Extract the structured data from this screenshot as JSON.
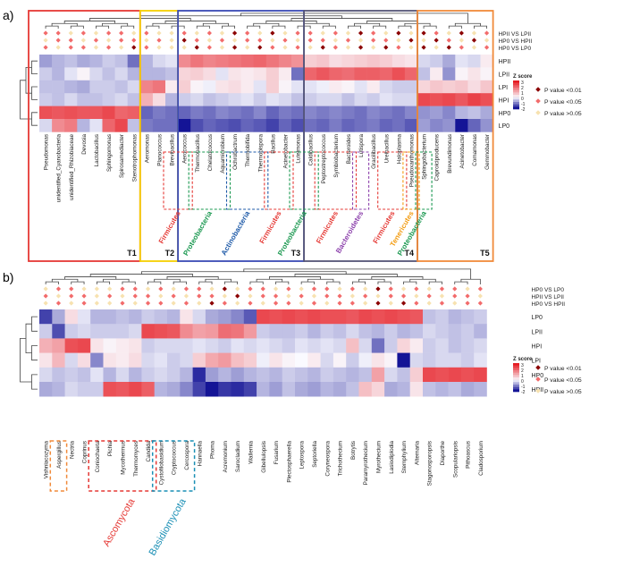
{
  "panel_a": {
    "label": "a)",
    "rows": [
      "HPII",
      "LPII",
      "LPI",
      "HPI",
      "HP0",
      "LP0"
    ],
    "comparisons": [
      "HPII VS LPII",
      "HP0 VS HPII",
      "HP0 VS LP0"
    ],
    "columns": [
      "Pseudomonas",
      "unidentified_Cyanobacteria",
      "unidentified_Rhizobiaceae",
      "Devosia",
      "Lactobacillus",
      "Sphingomonas",
      "Spirosamediacter",
      "Stenotrophomonas",
      "Aeromonas",
      "Planococcus",
      "Brevibacillus",
      "Aerococcus",
      "Thermobacillus",
      "Chelatococcus",
      "Aquamicrobium",
      "Ochrobactrum",
      "Thermobifida",
      "Thermobispora",
      "Bacillus",
      "Acinetobacter",
      "Luteimonas",
      "Caldibacillus",
      "Peptostreptococcus",
      "Symbiobacterium",
      "Bacteroides",
      "Lutispora",
      "Gracilibacillus",
      "Ureibacillus",
      "Haloplasma",
      "Pseudoxanthomonas",
      "Sphingobacterium",
      "Caproiciproducens",
      "Brevundimonas",
      "Acinetobacter",
      "Comamonas",
      "Gemmobacter"
    ],
    "taxa_labels": [
      {
        "text": "Firmicutes",
        "color": "#e53935"
      },
      {
        "text": "Proteobacteria",
        "color": "#1a9850"
      },
      {
        "text": "Actinobacteria",
        "color": "#1e5aa8"
      },
      {
        "text": "Firmicutes",
        "color": "#e53935"
      },
      {
        "text": "Proteobacteria",
        "color": "#1a9850"
      },
      {
        "text": "Firmicutes",
        "color": "#e53935"
      },
      {
        "text": "Bacteroidetes",
        "color": "#8e44ad"
      },
      {
        "text": "Firmicutes",
        "color": "#e53935"
      },
      {
        "text": "Tenericutes",
        "color": "#f39c12"
      },
      {
        "text": "Proteobacteria",
        "color": "#1a9850"
      }
    ],
    "groups": [
      "T1",
      "T2",
      "T3",
      "T4",
      "T5"
    ],
    "group_colors": [
      "#e53935",
      "#f5d000",
      "#3b4bb5",
      "#555577",
      "#f08a3a"
    ]
  },
  "panel_b": {
    "label": "b)",
    "rows": [
      "LP0",
      "LPII",
      "HPI",
      "LPI",
      "HP0",
      "HPII"
    ],
    "comparisons": [
      "HP0 VS LP0",
      "HPII VS LPII",
      "HP0 VS HPII"
    ],
    "columns": [
      "Vishniacozyma",
      "Aspergillus",
      "Nectria",
      "Coprinus",
      "Coniochaeta",
      "Pichia",
      "Mycothermus",
      "Thermomyces",
      "Candida",
      "Cystofilobasidium",
      "Cryptococcus",
      "Cercospora",
      "Hannaella",
      "Phoma",
      "Acremonium",
      "Sarocladium",
      "Wallemia",
      "Gibellulopsis",
      "Fusarium",
      "Plectosphaerella",
      "Leptospora",
      "Septoriella",
      "Coryneospora",
      "Trichothecium",
      "Botrytis",
      "Paramyrothecium",
      "Myrothecium",
      "Lasiodiplodia",
      "Stemphylium",
      "Alternaria",
      "Stagonosporopsis",
      "Diaporthe",
      "Scopulariopsis",
      "Pithoascus",
      "Cladosporium"
    ],
    "taxa_labels": [
      {
        "text": "Ascomycota",
        "color": "#e53935"
      },
      {
        "text": "Basidiomycota",
        "color": "#1a8fb5"
      }
    ]
  },
  "legend": {
    "zscore_title": "Z score",
    "zscore_ticks": [
      "3",
      "2",
      "1",
      "0",
      "-1",
      "-2"
    ],
    "p_items": [
      {
        "label": "P value <0.01",
        "color": "#8b0000"
      },
      {
        "label": "P value <0.05",
        "color": "#f26b6b"
      },
      {
        "label": "P value >0.05",
        "color": "#f7e2b0"
      }
    ]
  },
  "chart_data": [
    {
      "type": "heatmap",
      "title": "a)",
      "value_name": "Z score",
      "value_range": [
        -2,
        3
      ],
      "rows": [
        "HPII",
        "LPII",
        "LPI",
        "HPI",
        "HP0",
        "LP0"
      ],
      "groups": [
        {
          "name": "T1",
          "columns": [
            "Pseudomonas",
            "unidentified_Cyanobacteria",
            "unidentified_Rhizobiaceae",
            "Devosia",
            "Lactobacillus",
            "Sphingomonas",
            "Spirosamediacter",
            "Stenotrophomonas"
          ]
        },
        {
          "name": "T2",
          "columns": [
            "Aeromonas",
            "Planococcus",
            "Brevibacillus"
          ]
        },
        {
          "name": "T3",
          "columns": [
            "Aerococcus",
            "Thermobacillus",
            "Chelatococcus",
            "Aquamicrobium",
            "Ochrobactrum",
            "Thermobifida",
            "Thermobispora",
            "Bacillus",
            "Acinetobacter",
            "Luteimonas"
          ]
        },
        {
          "name": "T4",
          "columns": [
            "Caldibacillus",
            "Peptostreptococcus",
            "Symbiobacterium",
            "Bacteroides",
            "Lutispora",
            "Gracilibacillus",
            "Ureibacillus",
            "Haloplasma",
            "Pseudoxanthomonas"
          ]
        },
        {
          "name": "T5",
          "columns": [
            "Sphingobacterium",
            "Caproiciproducens",
            "Brevundimonas",
            "Acinetobacter",
            "Comamonas",
            "Gemmobacter"
          ]
        }
      ],
      "values": [
        [
          -0.8,
          -0.6,
          -0.5,
          -0.7,
          -0.6,
          -0.4,
          -0.5,
          -1.2,
          -0.6,
          -0.3,
          -0.2,
          1.5,
          1.8,
          1.6,
          1.7,
          1.8,
          1.9,
          2.0,
          1.8,
          1.6,
          1.4,
          0.6,
          0.7,
          0.4,
          0.5,
          0.6,
          0.7,
          0.6,
          0.4,
          0.3,
          -0.3,
          -0.4,
          -0.7,
          -0.2,
          -0.3,
          0.2
        ],
        [
          -0.4,
          -0.6,
          -0.2,
          0.1,
          -0.3,
          -0.5,
          -0.3,
          -0.6,
          -0.6,
          -0.6,
          -0.5,
          0.5,
          0.6,
          0.4,
          -0.2,
          0.3,
          0.2,
          0.3,
          0.6,
          0.2,
          -1.2,
          2.0,
          2.2,
          2.0,
          1.9,
          2.1,
          2.1,
          2.0,
          2.3,
          2.0,
          -0.5,
          0.2,
          -0.9,
          0.1,
          0.3,
          0.1
        ],
        [
          -0.5,
          -0.5,
          -0.6,
          -0.7,
          -0.4,
          -0.4,
          -0.5,
          -0.3,
          1.6,
          1.8,
          0.2,
          0.6,
          0.1,
          -0.1,
          0.3,
          0.4,
          0.2,
          -0.2,
          0.6,
          0.1,
          -0.2,
          -0.2,
          -0.1,
          0.2,
          0.1,
          -0.2,
          0.2,
          -0.3,
          -0.4,
          -0.4,
          0.5,
          0.7,
          0.6,
          0.7,
          0.4,
          0.7
        ],
        [
          -0.4,
          -0.5,
          -0.3,
          -0.5,
          -0.5,
          -0.4,
          -0.3,
          -0.5,
          1.0,
          0.4,
          -0.6,
          -0.4,
          -0.3,
          -0.5,
          -0.4,
          -0.3,
          -0.2,
          -0.4,
          -0.2,
          -0.3,
          -0.5,
          -0.4,
          -0.3,
          -0.3,
          -0.5,
          -0.3,
          -0.4,
          -0.2,
          -0.3,
          -0.3,
          2.4,
          2.3,
          2.4,
          2.2,
          2.5,
          2.3
        ],
        [
          2.3,
          2.2,
          2.3,
          2.2,
          2.2,
          2.4,
          2.0,
          2.1,
          -1.3,
          -1.1,
          -1.2,
          -1.3,
          -1.1,
          -1.2,
          -1.0,
          -1.1,
          -1.2,
          -1.0,
          -1.3,
          -1.1,
          -1.2,
          -1.0,
          -1.1,
          -1.0,
          -1.1,
          -1.2,
          -1.0,
          -1.1,
          -1.2,
          -1.0,
          -0.9,
          -0.8,
          -1.0,
          -0.6,
          -0.5,
          -0.7
        ],
        [
          -0.3,
          1.5,
          1.7,
          -0.6,
          -0.2,
          2.0,
          2.4,
          -0.5,
          -1.1,
          -1.2,
          -1.2,
          -2.0,
          -1.5,
          -1.3,
          -1.4,
          -1.5,
          -1.3,
          -1.4,
          -1.6,
          -1.3,
          -1.5,
          -1.2,
          -1.3,
          -1.1,
          -1.3,
          -1.2,
          -1.1,
          -1.3,
          -1.2,
          -1.4,
          -0.8,
          -1.0,
          -0.9,
          -2.0,
          -1.3,
          -0.9
        ]
      ]
    },
    {
      "type": "heatmap",
      "title": "b)",
      "value_name": "Z score",
      "value_range": [
        -2,
        3
      ],
      "rows": [
        "LP0",
        "LPII",
        "HPI",
        "LPI",
        "HP0",
        "HPII"
      ],
      "columns": [
        "Vishniacozyma",
        "Aspergillus",
        "Nectria",
        "Coprinus",
        "Coniochaeta",
        "Pichia",
        "Mycothermus",
        "Thermomyces",
        "Candida",
        "Cystofilobasidium",
        "Cryptococcus",
        "Cercospora",
        "Hannaella",
        "Phoma",
        "Acremonium",
        "Sarocladium",
        "Wallemia",
        "Gibellulopsis",
        "Fusarium",
        "Plectosphaerella",
        "Leptospora",
        "Septoriella",
        "Coryneospora",
        "Trichothecium",
        "Botrytis",
        "Paramyrothecium",
        "Myrothecium",
        "Lasiodiplodia",
        "Stemphylium",
        "Alternaria",
        "Stagonosporopsis",
        "Diaporthe",
        "Scopulariopsis",
        "Pithoascus",
        "Cladosporium"
      ],
      "values": [
        [
          -1.6,
          -0.7,
          0.4,
          -0.2,
          -0.6,
          -0.6,
          -0.5,
          -0.6,
          -0.4,
          -0.5,
          -0.6,
          0.3,
          -0.3,
          -0.7,
          -0.8,
          -1.0,
          -1.4,
          2.4,
          2.3,
          2.4,
          2.3,
          2.4,
          2.3,
          2.3,
          2.2,
          2.4,
          2.3,
          2.4,
          2.3,
          2.2,
          -0.5,
          -0.4,
          -0.6,
          -0.5,
          -0.4
        ],
        [
          -0.4,
          -1.5,
          -0.4,
          -0.3,
          -0.4,
          -0.4,
          -0.4,
          -0.3,
          2.4,
          2.3,
          2.2,
          1.5,
          1.2,
          1.3,
          1.9,
          1.8,
          1.3,
          -0.4,
          -0.5,
          -0.5,
          -0.4,
          -0.6,
          -0.4,
          -0.5,
          -0.3,
          -0.5,
          -0.6,
          -0.4,
          -0.6,
          -0.5,
          -0.3,
          -0.4,
          -0.5,
          -0.4,
          -0.6
        ],
        [
          1.0,
          1.2,
          2.3,
          2.4,
          0.3,
          0.1,
          0.2,
          0.3,
          -0.4,
          -0.3,
          -0.3,
          -0.3,
          -0.2,
          -0.3,
          -0.4,
          -0.2,
          -0.3,
          -0.2,
          -0.3,
          -0.4,
          -0.2,
          -0.3,
          -0.2,
          -0.3,
          0.8,
          -0.3,
          -1.2,
          -0.4,
          0.5,
          0.2,
          -0.4,
          -0.3,
          -0.5,
          -0.4,
          -0.3
        ],
        [
          0.3,
          0.9,
          -0.3,
          0.4,
          -1.0,
          0.3,
          0.2,
          0.4,
          -0.3,
          -0.2,
          -0.4,
          -0.3,
          0.6,
          1.1,
          1.3,
          0.8,
          0.6,
          -0.1,
          0.3,
          0.1,
          0.0,
          0.2,
          -0.3,
          0.1,
          -0.4,
          -0.1,
          0.3,
          0.1,
          -2.0,
          -0.3,
          -0.4,
          -0.3,
          -0.3,
          -0.4,
          -0.2
        ],
        [
          -0.3,
          -0.5,
          -0.4,
          -0.5,
          -0.2,
          -0.6,
          -0.3,
          -0.6,
          -0.4,
          -0.3,
          -0.4,
          -0.6,
          -1.8,
          -0.8,
          -0.6,
          -0.8,
          -0.6,
          -0.5,
          -0.6,
          -0.4,
          -0.5,
          -0.6,
          -0.4,
          -0.5,
          -0.6,
          -0.5,
          1.2,
          -0.3,
          -0.5,
          0.6,
          2.4,
          2.3,
          2.4,
          2.3,
          2.4
        ],
        [
          -0.7,
          -0.6,
          -0.3,
          -0.4,
          -0.4,
          2.3,
          2.2,
          2.4,
          2.1,
          -0.6,
          -0.7,
          -1.0,
          -1.6,
          -2.0,
          -1.7,
          -1.8,
          -1.6,
          -0.6,
          -0.8,
          -0.5,
          -0.7,
          -0.8,
          -0.6,
          -0.7,
          -0.5,
          0.8,
          0.5,
          -0.7,
          -0.6,
          0.3,
          -0.5,
          -0.6,
          -0.5,
          -0.7,
          -0.6
        ]
      ],
      "significance": "per-column markers for 3 comparisons (P value <0.01, <0.05, >0.05)"
    }
  ]
}
